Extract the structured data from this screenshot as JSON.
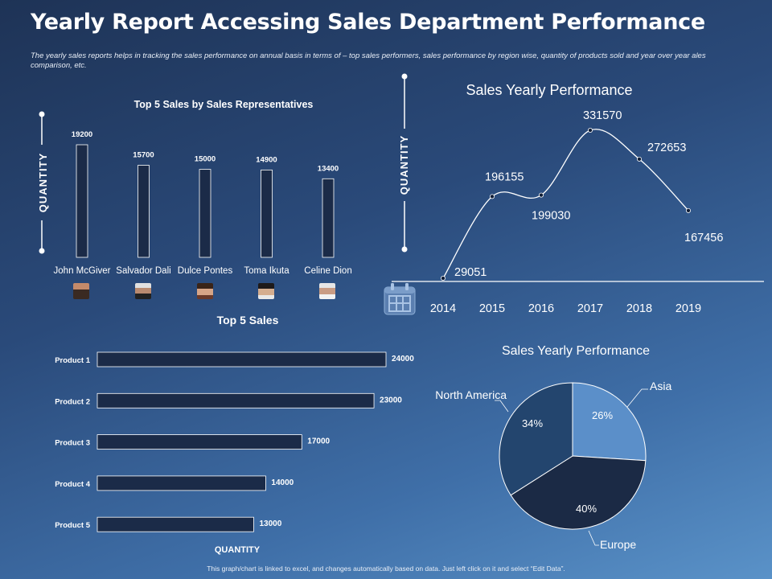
{
  "header": {
    "title": "Yearly Report Accessing Sales Department Performance",
    "description": "The yearly sales reports helps in tracking the sales performance on annual basis in terms of – top sales performers, sales performance by region wise, quantity of products sold and year over year ales comparison, etc."
  },
  "footer": {
    "note": "This graph/chart is linked to excel, and changes automatically based on data. Just left click on it and select “Edit Data”."
  },
  "chart_data": [
    {
      "type": "bar",
      "title": "Top 5 Sales by Sales Representatives",
      "ylabel": "QUANTITY",
      "categories": [
        "John McGiver",
        "Salvador Dali",
        "Dulce Pontes",
        "Toma Ikuta",
        "Celine Dion"
      ],
      "values": [
        19200,
        15700,
        15000,
        14900,
        13400
      ],
      "ylim": [
        0,
        20000
      ]
    },
    {
      "type": "line",
      "title": "Sales Yearly Performance",
      "ylabel": "QUANTITY",
      "x": [
        "2014",
        "2015",
        "2016",
        "2017",
        "2018",
        "2019"
      ],
      "values": [
        29051,
        196155,
        199030,
        331570,
        272653,
        167456
      ],
      "ylim": [
        0,
        350000
      ],
      "icon": "calendar-icon"
    },
    {
      "type": "bar",
      "orientation": "horizontal",
      "title": "Top 5 Sales",
      "xlabel": "QUANTITY",
      "categories": [
        "Product 1",
        "Product 2",
        "Product 3",
        "Product 4",
        "Product 5"
      ],
      "values": [
        24000,
        23000,
        17000,
        14000,
        13000
      ],
      "xlim": [
        0,
        25000
      ]
    },
    {
      "type": "pie",
      "title": "Sales Yearly Performance",
      "labels": [
        "Asia",
        "Europe",
        "North America"
      ],
      "values": [
        26,
        40,
        34
      ],
      "value_labels": [
        "26%",
        "40%",
        "34%"
      ],
      "colors": [
        "#5b8fc9",
        "#1b2a45",
        "#23456e"
      ]
    }
  ],
  "colors": {
    "bar_fill": "#1b2b48",
    "bar_stroke": "#ffffff",
    "line": "#ffffff",
    "point": "#0f1d36"
  }
}
